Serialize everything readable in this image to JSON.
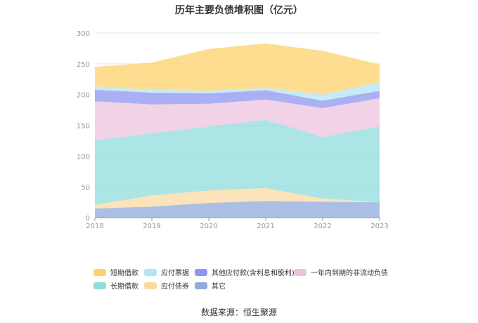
{
  "title": "历年主要负债堆积图（亿元）",
  "source": "数据来源：恒生聚源",
  "chart_data": {
    "type": "area",
    "stacked": true,
    "categories": [
      "2018",
      "2019",
      "2020",
      "2021",
      "2022",
      "2023"
    ],
    "ylim": [
      0,
      300
    ],
    "yticks": [
      0,
      50,
      100,
      150,
      200,
      250,
      300
    ],
    "grid": true,
    "legend_position": "bottom",
    "series": [
      {
        "name": "其它",
        "color": "#8faadc",
        "values": [
          15,
          18,
          24,
          27,
          26,
          25
        ]
      },
      {
        "name": "应付债券",
        "color": "#fcd9a1",
        "values": [
          6,
          18,
          20,
          21,
          5,
          0
        ]
      },
      {
        "name": "长期借款",
        "color": "#8fdcdc",
        "values": [
          105,
          101,
          104,
          111,
          100,
          123
        ]
      },
      {
        "name": "一年内到期的非流动负债",
        "color": "#ecc3de",
        "values": [
          63,
          47,
          37,
          33,
          47,
          46
        ]
      },
      {
        "name": "其他应付款(含利息和股利)",
        "color": "#8f96f0",
        "values": [
          19,
          19,
          17,
          15,
          12,
          12
        ]
      },
      {
        "name": "应付票据",
        "color": "#b3e4f7",
        "values": [
          5,
          5,
          4,
          4,
          10,
          14
        ]
      },
      {
        "name": "短期借款",
        "color": "#fed26b",
        "values": [
          32,
          44,
          68,
          72,
          71,
          29
        ]
      }
    ]
  },
  "legend_order": [
    "短期借款",
    "应付票据",
    "其他应付款(含利息和股利)",
    "一年内到期的非流动负债",
    "长期借款",
    "应付债券",
    "其它"
  ]
}
